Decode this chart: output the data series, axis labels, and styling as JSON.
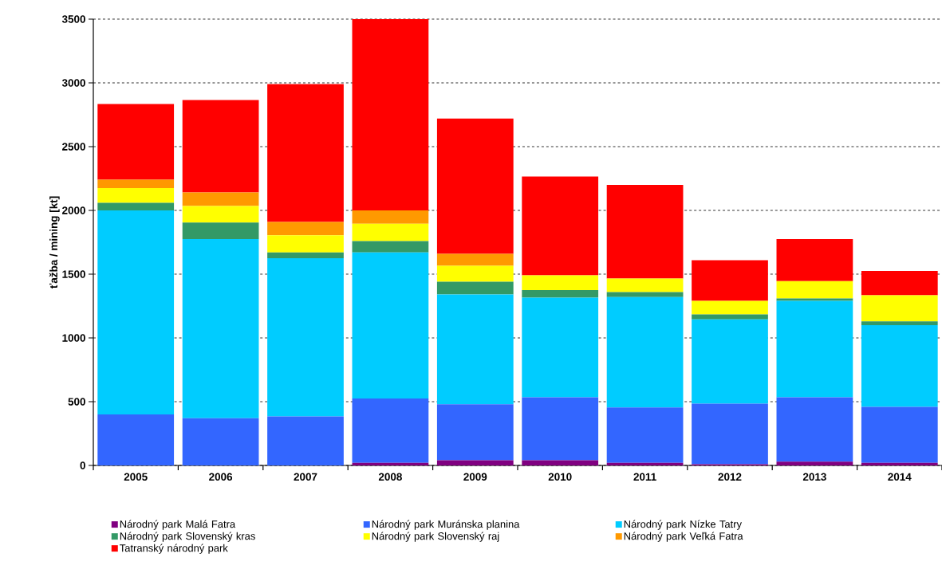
{
  "chart_data": {
    "type": "bar",
    "stacked": true,
    "ylabel": "ťažba / mining [kt]",
    "categories": [
      "2005",
      "2006",
      "2007",
      "2008",
      "2009",
      "2010",
      "2011",
      "2012",
      "2013",
      "2014"
    ],
    "series": [
      {
        "name": "Národný park Malá Fatra",
        "color": "#800080",
        "values": [
          0,
          0,
          0,
          20,
          40,
          40,
          20,
          10,
          30,
          20
        ]
      },
      {
        "name": "Národný park Muránska planina",
        "color": "#3366ff",
        "values": [
          400,
          370,
          385,
          505,
          440,
          495,
          435,
          475,
          505,
          440
        ]
      },
      {
        "name": "Národný park Nízke Tatry",
        "color": "#00ccff",
        "values": [
          1600,
          1405,
          1240,
          1145,
          860,
          780,
          865,
          660,
          755,
          640
        ]
      },
      {
        "name": "Národný park Slovenský kras",
        "color": "#339966",
        "values": [
          60,
          130,
          45,
          90,
          100,
          60,
          40,
          40,
          20,
          30
        ]
      },
      {
        "name": "Národný park Slovenský raj",
        "color": "#ffff00",
        "values": [
          115,
          130,
          135,
          135,
          125,
          115,
          105,
          105,
          135,
          205
        ]
      },
      {
        "name": "Národný park Veľká Fatra",
        "color": "#ff9900",
        "values": [
          65,
          105,
          105,
          105,
          95,
          0,
          0,
          0,
          0,
          0
        ]
      },
      {
        "name": "Tatranský národný park",
        "color": "#ff0000",
        "values": [
          595,
          725,
          1080,
          1500,
          1060,
          775,
          735,
          320,
          330,
          190
        ]
      }
    ],
    "ylim": [
      0,
      3500
    ],
    "yticks": [
      0,
      500,
      1000,
      1500,
      2000,
      2500,
      3000,
      3500
    ],
    "grid": "y",
    "legend": "bottom"
  }
}
